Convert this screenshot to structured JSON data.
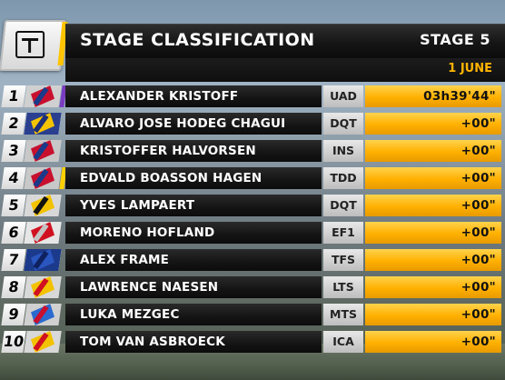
{
  "header": {
    "title": "STAGE CLASSIFICATION",
    "stage": "STAGE 5",
    "date": "1 JUNE",
    "logo_icon": "tv-channel-logo-icon",
    "accent_color": "#ffc300"
  },
  "rows": [
    {
      "pos": "1",
      "name": "ALEXANDER KRISTOFF",
      "team": "UAD",
      "time": "03h39'44\"",
      "jersey_icon": "uae-jersey-icon",
      "colors": [
        "#d0d0d0",
        "#c8102e",
        "#1a3a8a"
      ],
      "accent": "#7a3cc0"
    },
    {
      "pos": "2",
      "name": "ALVARO JOSE HODEG CHAGUI",
      "team": "DQT",
      "time": "+00\"",
      "jersey_icon": "colombia-jersey-icon",
      "colors": [
        "#2a3f8f",
        "#f5c400",
        "#1d2f77"
      ],
      "accent": ""
    },
    {
      "pos": "3",
      "name": "KRISTOFFER HALVORSEN",
      "team": "INS",
      "time": "+00\"",
      "jersey_icon": "norway-jersey-icon",
      "colors": [
        "#c8c8c8",
        "#c8102e",
        "#1a3a8a"
      ],
      "accent": ""
    },
    {
      "pos": "4",
      "name": "EDVALD BOASSON HAGEN",
      "team": "TDD",
      "time": "+00\"",
      "jersey_icon": "norway-jersey-icon",
      "colors": [
        "#c8c8c8",
        "#c8102e",
        "#1a3a8a"
      ],
      "accent": "#ffd000"
    },
    {
      "pos": "5",
      "name": "YVES LAMPAERT",
      "team": "DQT",
      "time": "+00\"",
      "jersey_icon": "belgium-jersey-icon",
      "colors": [
        "#d8d8d8",
        "#f2c200",
        "#111111"
      ],
      "accent": ""
    },
    {
      "pos": "6",
      "name": "MORENO HOFLAND",
      "team": "EF1",
      "time": "+00\"",
      "jersey_icon": "netherlands-jersey-icon",
      "colors": [
        "#e6e6e6",
        "#d01020",
        "#c4c4c4"
      ],
      "accent": ""
    },
    {
      "pos": "7",
      "name": "ALEX FRAME",
      "team": "TFS",
      "time": "+00\"",
      "jersey_icon": "new-zealand-jersey-icon",
      "colors": [
        "#1c3a8c",
        "#2a56c0",
        "#0f2260"
      ],
      "accent": ""
    },
    {
      "pos": "8",
      "name": "LAWRENCE NAESEN",
      "team": "LTS",
      "time": "+00\"",
      "jersey_icon": "belgium-jersey-icon",
      "colors": [
        "#d8d8d8",
        "#f2c200",
        "#d01020"
      ],
      "accent": ""
    },
    {
      "pos": "9",
      "name": "LUKA MEZGEC",
      "team": "MTS",
      "time": "+00\"",
      "jersey_icon": "slovenia-jersey-icon",
      "colors": [
        "#d0d0d0",
        "#2a6ad0",
        "#c8102e"
      ],
      "accent": ""
    },
    {
      "pos": "10",
      "name": "TOM VAN ASBROECK",
      "team": "ICA",
      "time": "+00\"",
      "jersey_icon": "belgium-jersey-icon",
      "colors": [
        "#d8d8d8",
        "#f2c200",
        "#d01020"
      ],
      "accent": ""
    }
  ]
}
